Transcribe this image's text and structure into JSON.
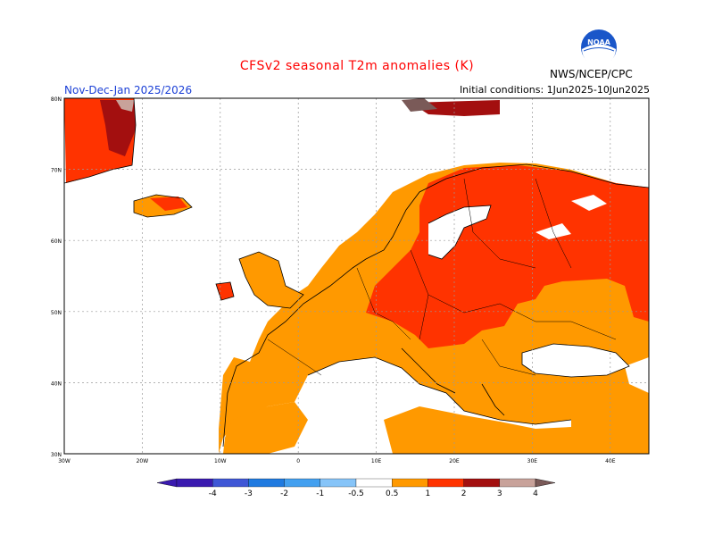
{
  "title": "CFSv2 seasonal T2m anomalies (K)",
  "period": "Nov-Dec-Jan 2025/2026",
  "initial_conditions": "Initial conditions: 1Jun2025-10Jun2025",
  "agency": "NWS/NCEP/CPC",
  "logo_text": "NOAA",
  "map": {
    "lat_ticks": [
      "30N",
      "40N",
      "50N",
      "60N",
      "70N",
      "80N"
    ],
    "lon_ticks": [
      "30W",
      "20W",
      "10W",
      "0",
      "10E",
      "20E",
      "30E",
      "40E"
    ],
    "gridlines": "dotted"
  },
  "legend": {
    "labels": [
      "-4",
      "-3",
      "-2",
      "-1",
      "-0.5",
      "0.5",
      "1",
      "2",
      "3",
      "4"
    ],
    "colors": [
      "#3a1ab0",
      "#3f57d6",
      "#1f7ae0",
      "#43a0f0",
      "#86c4f8",
      "#ffffff",
      "#ff9900",
      "#ff3300",
      "#a30f0f",
      "#c8a29a",
      "#7a5a58"
    ]
  }
}
